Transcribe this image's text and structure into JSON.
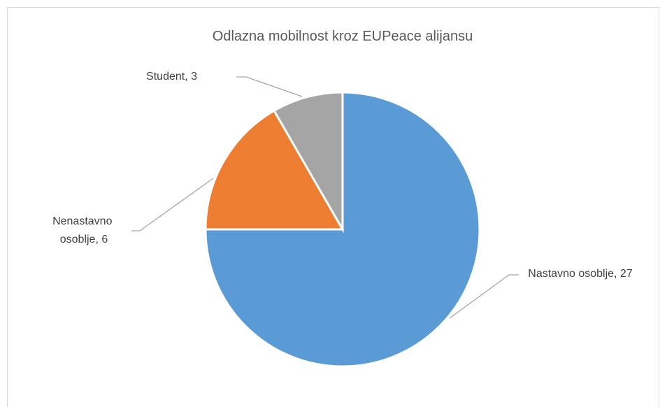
{
  "chart_data": {
    "type": "pie",
    "title": "Odlazna mobilnost kroz EUPeace alijansu",
    "categories": [
      "Nastavno osoblje",
      "Nenastavno osoblje",
      "Student"
    ],
    "values": [
      27,
      6,
      3
    ],
    "value_labels": [
      "Nastavno osoblje, 27",
      "Nenastavno osoblje, 6",
      "Student, 3"
    ],
    "colors": [
      "#5b9bd5",
      "#ed7d31",
      "#a5a5a5"
    ]
  }
}
